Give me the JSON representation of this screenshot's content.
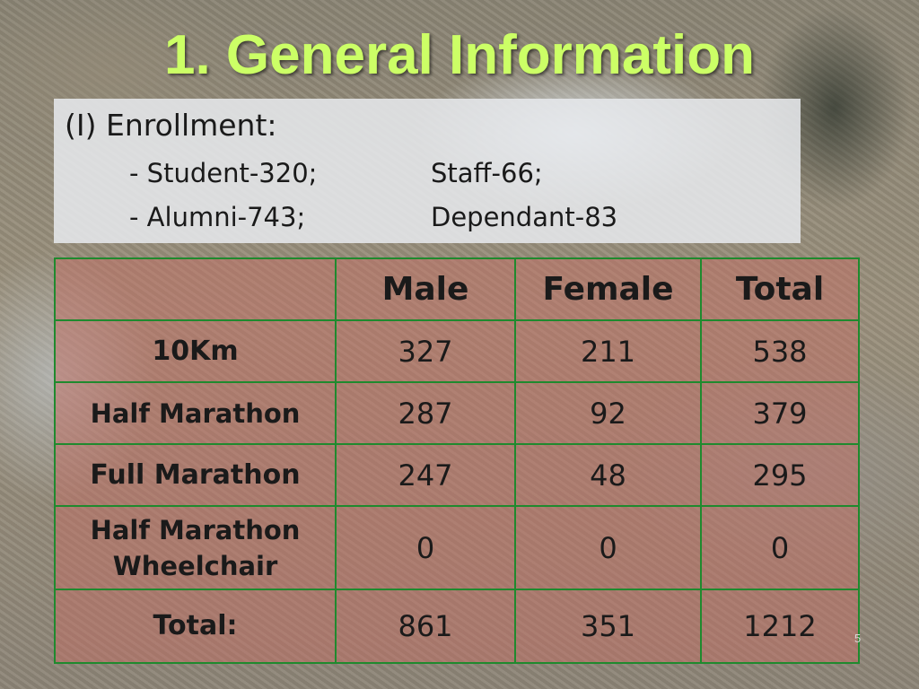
{
  "slide": {
    "title": "1. General Information",
    "page_number": "5"
  },
  "enrollment": {
    "heading": "(I) Enrollment:",
    "rows": [
      {
        "left": "- Student-320;",
        "right": "Staff-66;"
      },
      {
        "left": "- Alumni-743;",
        "right": "Dependant-83"
      }
    ]
  },
  "table": {
    "columns": [
      "",
      "Male",
      "Female",
      "Total"
    ],
    "rows": [
      {
        "label": "10Km",
        "values": [
          "327",
          "211",
          "538"
        ]
      },
      {
        "label": "Half Marathon",
        "values": [
          "287",
          "92",
          "379"
        ]
      },
      {
        "label": "Full Marathon",
        "values": [
          "247",
          "48",
          "295"
        ]
      },
      {
        "label_line1": "Half Marathon",
        "label_line2": "Wheelchair",
        "values": [
          "0",
          "0",
          "0"
        ]
      },
      {
        "label": "Total:",
        "values": [
          "861",
          "351",
          "1212"
        ]
      }
    ]
  },
  "colors": {
    "title": "#ccff66",
    "table_border": "#1f8a2e",
    "table_fill": "#c46e64"
  }
}
